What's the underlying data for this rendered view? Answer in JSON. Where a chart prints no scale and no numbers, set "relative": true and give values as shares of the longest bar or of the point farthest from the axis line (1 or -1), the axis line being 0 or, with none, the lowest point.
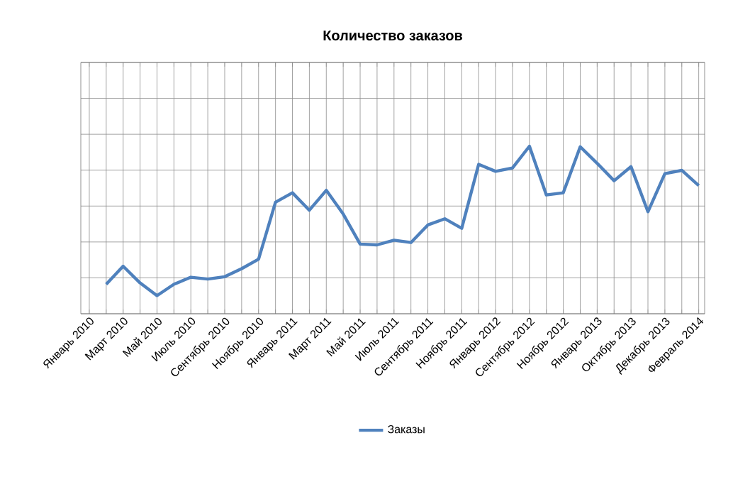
{
  "chart_data": {
    "type": "line",
    "title": "Количество заказов",
    "relative": true,
    "grid": true,
    "legend": "bottom",
    "marker": "none",
    "line_style": "solid",
    "categories": [
      "Январь 2010",
      null,
      "Март 2010",
      null,
      "Май 2010",
      null,
      "Июль 2010",
      null,
      "Сентябрь 2010",
      null,
      "Ноябрь 2010",
      null,
      "Январь 2011",
      null,
      "Март 2011",
      null,
      "Май 2011",
      null,
      "Июль 2011",
      null,
      "Сентябрь 2011",
      null,
      "Ноябрь 2011",
      null,
      "Январь 2012",
      null,
      "Сентябрь 2012",
      null,
      "Ноябрь 2012",
      null,
      "Январь 2013",
      null,
      "Октябрь 2013",
      null,
      "Декабрь 2013",
      null,
      "Февраль 2014"
    ],
    "series": [
      {
        "name": "Заказы",
        "color": "#4f81bd",
        "values": [
          null,
          0.176,
          0.284,
          0.184,
          0.108,
          0.176,
          0.218,
          0.207,
          0.221,
          0.269,
          0.326,
          0.666,
          0.722,
          0.618,
          0.737,
          0.595,
          0.416,
          0.411,
          0.439,
          0.425,
          0.53,
          0.567,
          0.51,
          0.892,
          0.85,
          0.87,
          1,
          0.709,
          0.722,
          0.997,
          0.898,
          0.794,
          0.878,
          0.609,
          0.836,
          0.856,
          0.765
        ]
      }
    ]
  }
}
